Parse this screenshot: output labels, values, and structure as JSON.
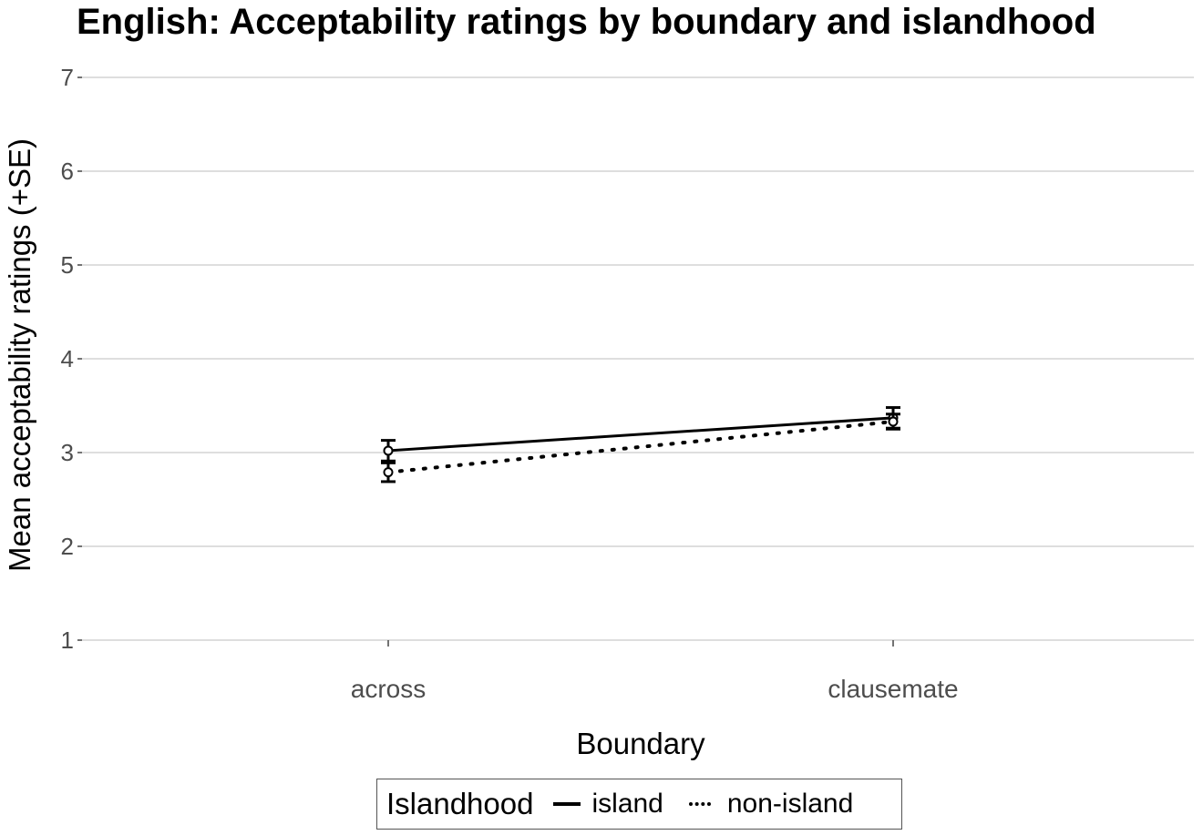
{
  "chart_data": {
    "type": "line",
    "title": "English: Acceptability ratings by boundary and islandhood",
    "xlabel": "Boundary",
    "ylabel": "Mean acceptability ratings (+SE)",
    "categories": [
      "across",
      "clausemate"
    ],
    "ylim": [
      1,
      7
    ],
    "yticks": [
      1,
      2,
      3,
      4,
      5,
      6,
      7
    ],
    "grid": true,
    "legend_position": "bottom",
    "legend_title": "Islandhood",
    "series": [
      {
        "name": "island",
        "linestyle": "solid",
        "values": [
          3.02,
          3.37
        ],
        "se": [
          0.11,
          0.11
        ]
      },
      {
        "name": "non-island",
        "linestyle": "dotted",
        "values": [
          2.79,
          3.33
        ],
        "se": [
          0.1,
          0.08
        ]
      }
    ]
  },
  "title": "English: Acceptability ratings by boundary and islandhood",
  "axes": {
    "xlabel": "Boundary",
    "ylabel": "Mean acceptability ratings (+SE)",
    "xticks": [
      "across",
      "clausemate"
    ],
    "yticks": [
      "1",
      "2",
      "3",
      "4",
      "5",
      "6",
      "7"
    ]
  },
  "legend": {
    "title": "Islandhood",
    "items": [
      "island",
      "non-island"
    ]
  }
}
